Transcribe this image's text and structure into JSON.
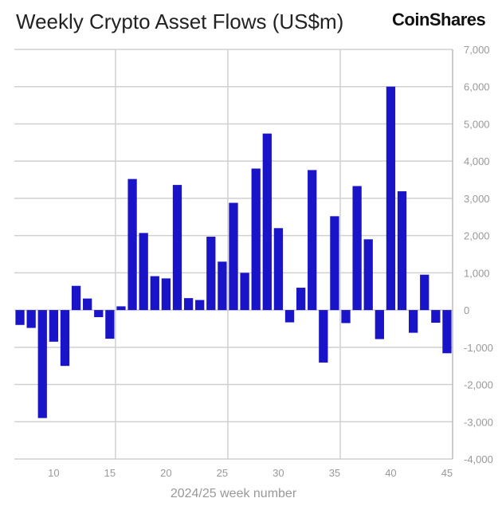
{
  "chart_data": {
    "type": "bar",
    "title": "Weekly Crypto Asset Flows (US$m)",
    "xlabel": "2024/25 week number",
    "ylabel": "",
    "x": [
      7,
      8,
      9,
      10,
      11,
      12,
      13,
      14,
      15,
      16,
      17,
      18,
      19,
      20,
      21,
      22,
      23,
      24,
      25,
      26,
      27,
      28,
      29,
      30,
      31,
      32,
      33,
      34,
      35,
      36,
      37,
      38,
      39,
      40,
      41,
      42,
      43,
      44,
      45
    ],
    "values": [
      -400,
      -480,
      -2900,
      -850,
      -1500,
      650,
      310,
      -190,
      -770,
      100,
      3520,
      2070,
      910,
      850,
      3360,
      320,
      270,
      1970,
      1300,
      2880,
      1000,
      3800,
      4740,
      2200,
      -330,
      600,
      3760,
      -1410,
      2520,
      -350,
      3330,
      1900,
      -780,
      6000,
      3190,
      -610,
      950,
      -340,
      -1160
    ],
    "xlim": [
      6.5,
      45.5
    ],
    "ylim": [
      -4000,
      7000
    ],
    "xticks": [
      10,
      15,
      20,
      25,
      30,
      35,
      40,
      45
    ],
    "yticks": [
      -4000,
      -3000,
      -2000,
      -1000,
      0,
      1000,
      2000,
      3000,
      4000,
      5000,
      6000,
      7000
    ],
    "ytick_labels": [
      "-4,000",
      "-3,000",
      "-2,000",
      "-1,000",
      "0",
      "1,000",
      "2,000",
      "3,000",
      "4,000",
      "5,000",
      "6,000",
      "7,000"
    ],
    "y_axis_side": "right",
    "grid": true,
    "bar_color": "#1a14c8",
    "grid_color": "#d0d0d0"
  },
  "brand": {
    "logo_text": "CoinShares"
  }
}
